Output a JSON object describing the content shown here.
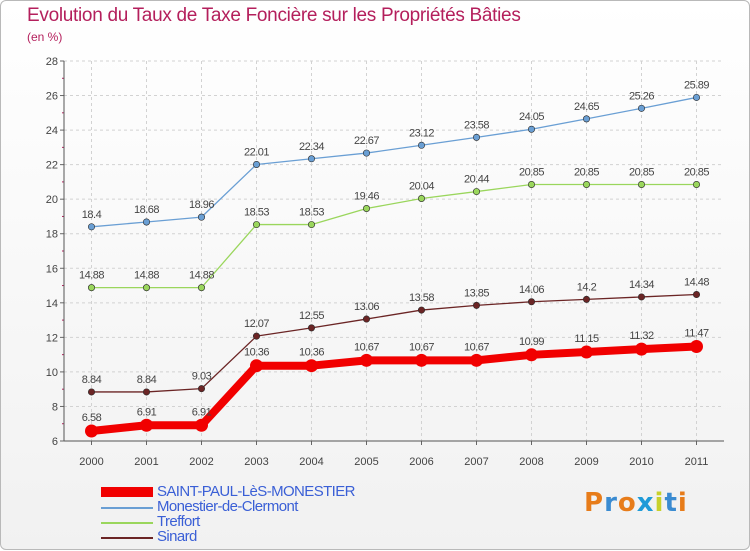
{
  "title": "Evolution du Taux de Taxe Foncière sur les Propriétés Bâties",
  "subtitle": "(en %)",
  "chart_data": {
    "type": "line",
    "title": "Evolution du Taux de Taxe Foncière sur les Propriétés Bâties",
    "ylabel": "(en %)",
    "xlabel": "",
    "x": [
      "2000",
      "2001",
      "2002",
      "2003",
      "2004",
      "2005",
      "2006",
      "2007",
      "2008",
      "2009",
      "2010",
      "2011"
    ],
    "ylim": [
      6,
      28
    ],
    "yticks": [
      "6",
      "8",
      "10",
      "12",
      "14",
      "16",
      "18",
      "20",
      "22",
      "24",
      "26",
      "28"
    ],
    "grid": true,
    "series": [
      {
        "name": "SAINT-PAUL-LèS-MONESTIER",
        "color": "#f10000",
        "values": [
          6.58,
          6.91,
          6.91,
          10.36,
          10.36,
          10.67,
          10.67,
          10.67,
          10.99,
          11.15,
          11.32,
          11.47
        ],
        "labels": [
          "6.58",
          "6.91",
          "6.91",
          "10.36",
          "10.36",
          "10.67",
          "10.67",
          "10.67",
          "10.99",
          "11.15",
          "11.32",
          "11.47"
        ]
      },
      {
        "name": "Monestier-de-Clermont",
        "color": "#6a9fd4",
        "values": [
          18.4,
          18.68,
          18.96,
          22.01,
          22.34,
          22.67,
          23.12,
          23.58,
          24.05,
          24.65,
          25.26,
          25.89
        ],
        "labels": [
          "18.4",
          "18.68",
          "18.96",
          "22.01",
          "22.34",
          "22.67",
          "23.12",
          "23.58",
          "24.05",
          "24.65",
          "25.26",
          "25.89"
        ]
      },
      {
        "name": "Treffort",
        "color": "#9ad65c",
        "values": [
          14.88,
          14.88,
          14.88,
          18.53,
          18.53,
          19.46,
          20.04,
          20.44,
          20.85,
          20.85,
          20.85,
          20.85
        ],
        "labels": [
          "14.88",
          "14.88",
          "14.88",
          "18.53",
          "18.53",
          "19.46",
          "20.04",
          "20.44",
          "20.85",
          "20.85",
          "20.85",
          "20.85"
        ]
      },
      {
        "name": "Sinard",
        "color": "#6b2525",
        "values": [
          8.84,
          8.84,
          9.03,
          12.07,
          12.55,
          13.06,
          13.58,
          13.85,
          14.06,
          14.2,
          14.34,
          14.48
        ],
        "labels": [
          "8.84",
          "8.84",
          "9.03",
          "12.07",
          "12.55",
          "13.06",
          "13.58",
          "13.85",
          "14.06",
          "14.2",
          "14.34",
          "14.48"
        ]
      }
    ]
  },
  "legend": [
    {
      "label": "SAINT-PAUL-LèS-MONESTIER",
      "color": "#f10000"
    },
    {
      "label": "Monestier-de-Clermont",
      "color": "#6a9fd4"
    },
    {
      "label": "Treffort",
      "color": "#9ad65c"
    },
    {
      "label": "Sinard",
      "color": "#6b2525"
    }
  ],
  "logo": {
    "text": "Proxiti",
    "colors": [
      "#e77c1a",
      "#3a8bd1",
      "#e77c1a",
      "#1f9bd8",
      "#c8d12c",
      "#3a8bd1",
      "#e77c1a"
    ]
  }
}
